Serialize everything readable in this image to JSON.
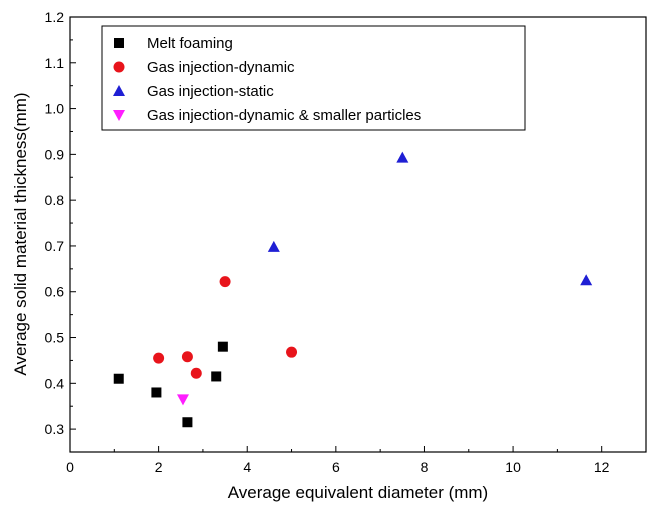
{
  "chart_data": {
    "type": "scatter",
    "xlabel": "Average equivalent diameter (mm)",
    "ylabel": "Average solid material thickness(mm)",
    "xlim": [
      0,
      13
    ],
    "ylim": [
      0.25,
      1.2
    ],
    "x_ticks": [
      0,
      2,
      4,
      6,
      8,
      10,
      12
    ],
    "y_ticks": [
      0.3,
      0.4,
      0.5,
      0.6,
      0.7,
      0.8,
      0.9,
      1.0,
      1.1,
      1.2
    ],
    "x_tick_labels": [
      "0",
      "2",
      "4",
      "6",
      "8",
      "10",
      "12"
    ],
    "y_tick_labels": [
      "0.3",
      "0.4",
      "0.5",
      "0.6",
      "0.7",
      "0.8",
      "0.9",
      "1.0",
      "1.1",
      "1.2"
    ],
    "grid": false,
    "legend_position": "top-left",
    "series": [
      {
        "name": "Melt foaming",
        "marker": "square",
        "color": "#000000",
        "points": [
          [
            1.1,
            0.41
          ],
          [
            1.95,
            0.38
          ],
          [
            2.65,
            0.315
          ],
          [
            3.3,
            0.415
          ],
          [
            3.45,
            0.48
          ]
        ]
      },
      {
        "name": "Gas injection-dynamic",
        "marker": "circle",
        "color": "#e8141b",
        "points": [
          [
            2.0,
            0.455
          ],
          [
            2.65,
            0.458
          ],
          [
            2.85,
            0.422
          ],
          [
            3.5,
            0.622
          ],
          [
            5.0,
            0.468
          ]
        ]
      },
      {
        "name": "Gas injection-static",
        "marker": "triangle-up",
        "color": "#1f1fd4",
        "points": [
          [
            4.6,
            0.698
          ],
          [
            7.5,
            0.893
          ],
          [
            11.65,
            0.625
          ]
        ]
      },
      {
        "name": "Gas injection-dynamic & smaller particles",
        "marker": "triangle-down",
        "color": "#ff1dff",
        "points": [
          [
            2.55,
            0.365
          ]
        ]
      }
    ]
  }
}
